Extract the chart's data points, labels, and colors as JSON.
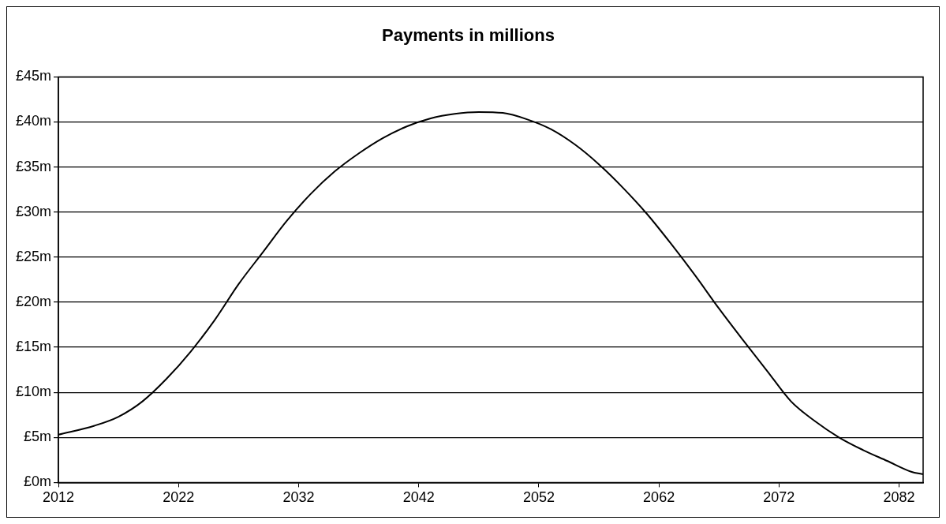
{
  "chart_data": {
    "type": "line",
    "title": "Payments in millions",
    "x": [
      2012,
      2015,
      2017,
      2019,
      2021,
      2023,
      2025,
      2027,
      2029,
      2031,
      2033,
      2035,
      2037,
      2039,
      2041,
      2043,
      2045,
      2047,
      2049,
      2051,
      2053,
      2055,
      2057,
      2059,
      2061,
      2063,
      2065,
      2067,
      2069,
      2071,
      2073,
      2075,
      2077,
      2079,
      2081,
      2083,
      2084
    ],
    "series": [
      {
        "color": "#000000",
        "values": [
          5.3,
          6.3,
          7.3,
          9.0,
          11.5,
          14.5,
          18.0,
          22.0,
          25.5,
          29.0,
          32.0,
          34.5,
          36.5,
          38.2,
          39.5,
          40.4,
          40.9,
          41.1,
          41.0,
          40.3,
          39.2,
          37.5,
          35.3,
          32.7,
          29.8,
          26.5,
          23.0,
          19.3,
          15.8,
          12.4,
          9.0,
          6.8,
          5.0,
          3.6,
          2.4,
          1.2,
          0.9
        ]
      }
    ],
    "xlim": [
      2012,
      2084
    ],
    "xticks": [
      2012,
      2022,
      2032,
      2042,
      2052,
      2062,
      2072,
      2082
    ],
    "ylim": [
      0,
      45
    ],
    "yticks": [
      {
        "value": 0,
        "label": "£0m"
      },
      {
        "value": 5,
        "label": "£5m"
      },
      {
        "value": 10,
        "label": "£10m"
      },
      {
        "value": 15,
        "label": "£15m"
      },
      {
        "value": 20,
        "label": "£20m"
      },
      {
        "value": 25,
        "label": "£25m"
      },
      {
        "value": 30,
        "label": "£30m"
      },
      {
        "value": 35,
        "label": "£35m"
      },
      {
        "value": 40,
        "label": "£40m"
      },
      {
        "value": 45,
        "label": "£45m"
      }
    ],
    "grid": "y",
    "legend": false,
    "marker": "none",
    "line_style": "solid"
  }
}
